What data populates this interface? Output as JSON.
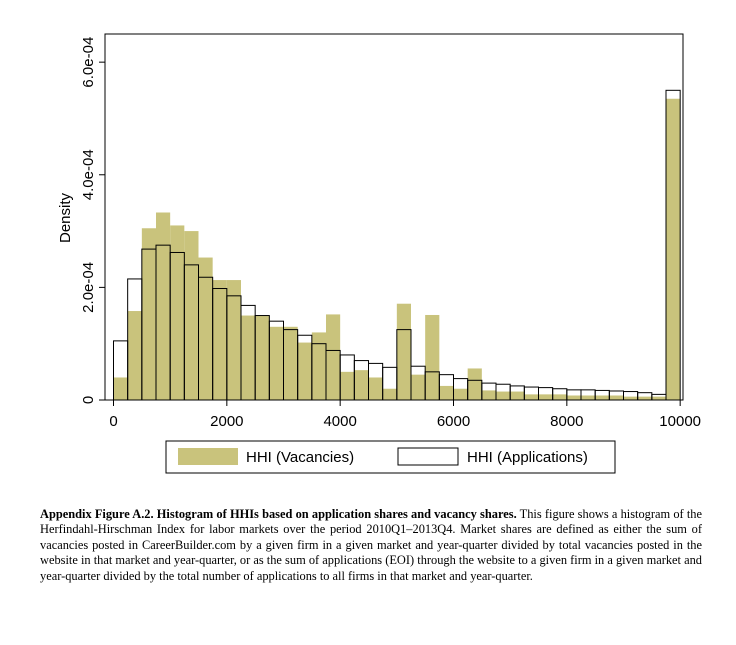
{
  "chart_data": {
    "type": "bar",
    "xlim": [
      -150,
      10050
    ],
    "ylim": [
      0,
      0.00065
    ],
    "bin_width": 250,
    "xticks": [
      0,
      2000,
      4000,
      6000,
      8000,
      10000
    ],
    "xtick_labels": [
      "0",
      "2000",
      "4000",
      "6000",
      "8000",
      "10000"
    ],
    "yticks": [
      0,
      0.0002,
      0.0004,
      0.0006
    ],
    "ytick_labels": [
      "0",
      "2.0e-04",
      "4.0e-04",
      "6.0e-04"
    ],
    "xlabel": "",
    "ylabel": "Density",
    "grid": false,
    "legend_position": "bottom",
    "series": [
      {
        "name": "HHI (Vacancies)",
        "style": "filled",
        "color": "#c9c37c",
        "bin_starts": [
          0,
          250,
          500,
          750,
          1000,
          1250,
          1500,
          1750,
          2000,
          2250,
          2500,
          2750,
          3000,
          3250,
          3500,
          3750,
          4000,
          4250,
          4500,
          4750,
          5000,
          5250,
          5500,
          5750,
          6000,
          6250,
          6500,
          6750,
          7000,
          7250,
          7500,
          7750,
          8000,
          8250,
          8500,
          8750,
          9000,
          9250,
          9500,
          9750
        ],
        "values": [
          4e-05,
          0.000158,
          0.000305,
          0.000333,
          0.00031,
          0.0003,
          0.000253,
          0.000213,
          0.000213,
          0.00015,
          0.00015,
          0.00013,
          0.00013,
          0.000102,
          0.00012,
          0.000152,
          5e-05,
          5.3e-05,
          4e-05,
          2e-05,
          0.000171,
          4.5e-05,
          0.000151,
          2.5e-05,
          2e-05,
          5.6e-05,
          1.7e-05,
          1.5e-05,
          1.5e-05,
          1e-05,
          1e-05,
          1e-05,
          8e-06,
          8e-06,
          8e-06,
          8e-06,
          6e-06,
          6e-06,
          6e-06,
          0.000535
        ]
      },
      {
        "name": "HHI (Applications)",
        "style": "outline",
        "color": "#000000",
        "bin_starts": [
          0,
          250,
          500,
          750,
          1000,
          1250,
          1500,
          1750,
          2000,
          2250,
          2500,
          2750,
          3000,
          3250,
          3500,
          3750,
          4000,
          4250,
          4500,
          4750,
          5000,
          5250,
          5500,
          5750,
          6000,
          6250,
          6500,
          6750,
          7000,
          7250,
          7500,
          7750,
          8000,
          8250,
          8500,
          8750,
          9000,
          9250,
          9500,
          9750
        ],
        "values": [
          0.000105,
          0.000215,
          0.000268,
          0.000275,
          0.000262,
          0.00024,
          0.000218,
          0.000198,
          0.000185,
          0.000168,
          0.00015,
          0.00014,
          0.000125,
          0.000115,
          0.0001,
          8.8e-05,
          8e-05,
          7e-05,
          6.5e-05,
          5.8e-05,
          0.000125,
          6e-05,
          5e-05,
          4.5e-05,
          3.8e-05,
          3.5e-05,
          3e-05,
          2.8e-05,
          2.5e-05,
          2.3e-05,
          2.2e-05,
          2e-05,
          1.8e-05,
          1.8e-05,
          1.7e-05,
          1.6e-05,
          1.5e-05,
          1.3e-05,
          1e-05,
          0.00055
        ]
      }
    ]
  },
  "caption": {
    "title": "Appendix Figure A.2. Histogram of HHIs based on application shares and vacancy shares.",
    "body": " This figure shows a histogram of the Herfindahl-Hirschman Index for labor markets over the period 2010Q1–2013Q4. Market shares are defined as either the sum of vacancies posted in CareerBuilder.com by a given firm in a given market and year-quarter divided by total vacancies posted in the website in that market and year-quarter, or as the sum of applications (EOI) through the website to a given firm in a given market and year-quarter divided by the total number of applications to all firms in that market and year-quarter."
  }
}
